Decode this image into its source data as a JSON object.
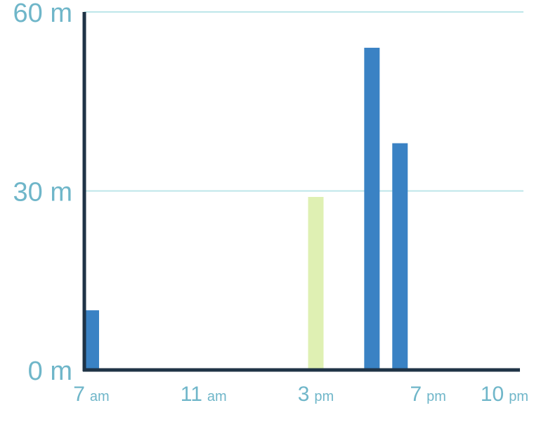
{
  "chart_data": {
    "type": "bar",
    "title": "",
    "xlabel": "",
    "ylabel": "",
    "x_unit": "hour",
    "y_unit": "minutes",
    "xlim": [
      6.75,
      22.4
    ],
    "ylim": [
      0,
      60
    ],
    "y_ticks": [
      {
        "value": 0,
        "label": "0 m"
      },
      {
        "value": 30,
        "label": "30 m"
      },
      {
        "value": 60,
        "label": "60 m"
      }
    ],
    "x_ticks": [
      {
        "value": 7,
        "num": "7",
        "suffix": "am"
      },
      {
        "value": 11,
        "num": "11",
        "suffix": "am"
      },
      {
        "value": 15,
        "num": "3",
        "suffix": "pm"
      },
      {
        "value": 19,
        "num": "7",
        "suffix": "pm"
      },
      {
        "value": 22,
        "num": "10",
        "suffix": "pm"
      }
    ],
    "bars": [
      {
        "hour": 7,
        "value": 10,
        "highlight": false
      },
      {
        "hour": 15,
        "value": 29,
        "highlight": true
      },
      {
        "hour": 17,
        "value": 54,
        "highlight": false
      },
      {
        "hour": 18,
        "value": 38,
        "highlight": false
      }
    ],
    "grid": true,
    "legend": "none",
    "colors": {
      "bar": "#3a82c4",
      "highlight": "#dff0b3",
      "axis": "#1f3346",
      "grid": "#bde6ea",
      "label": "#6fb6c9"
    }
  }
}
